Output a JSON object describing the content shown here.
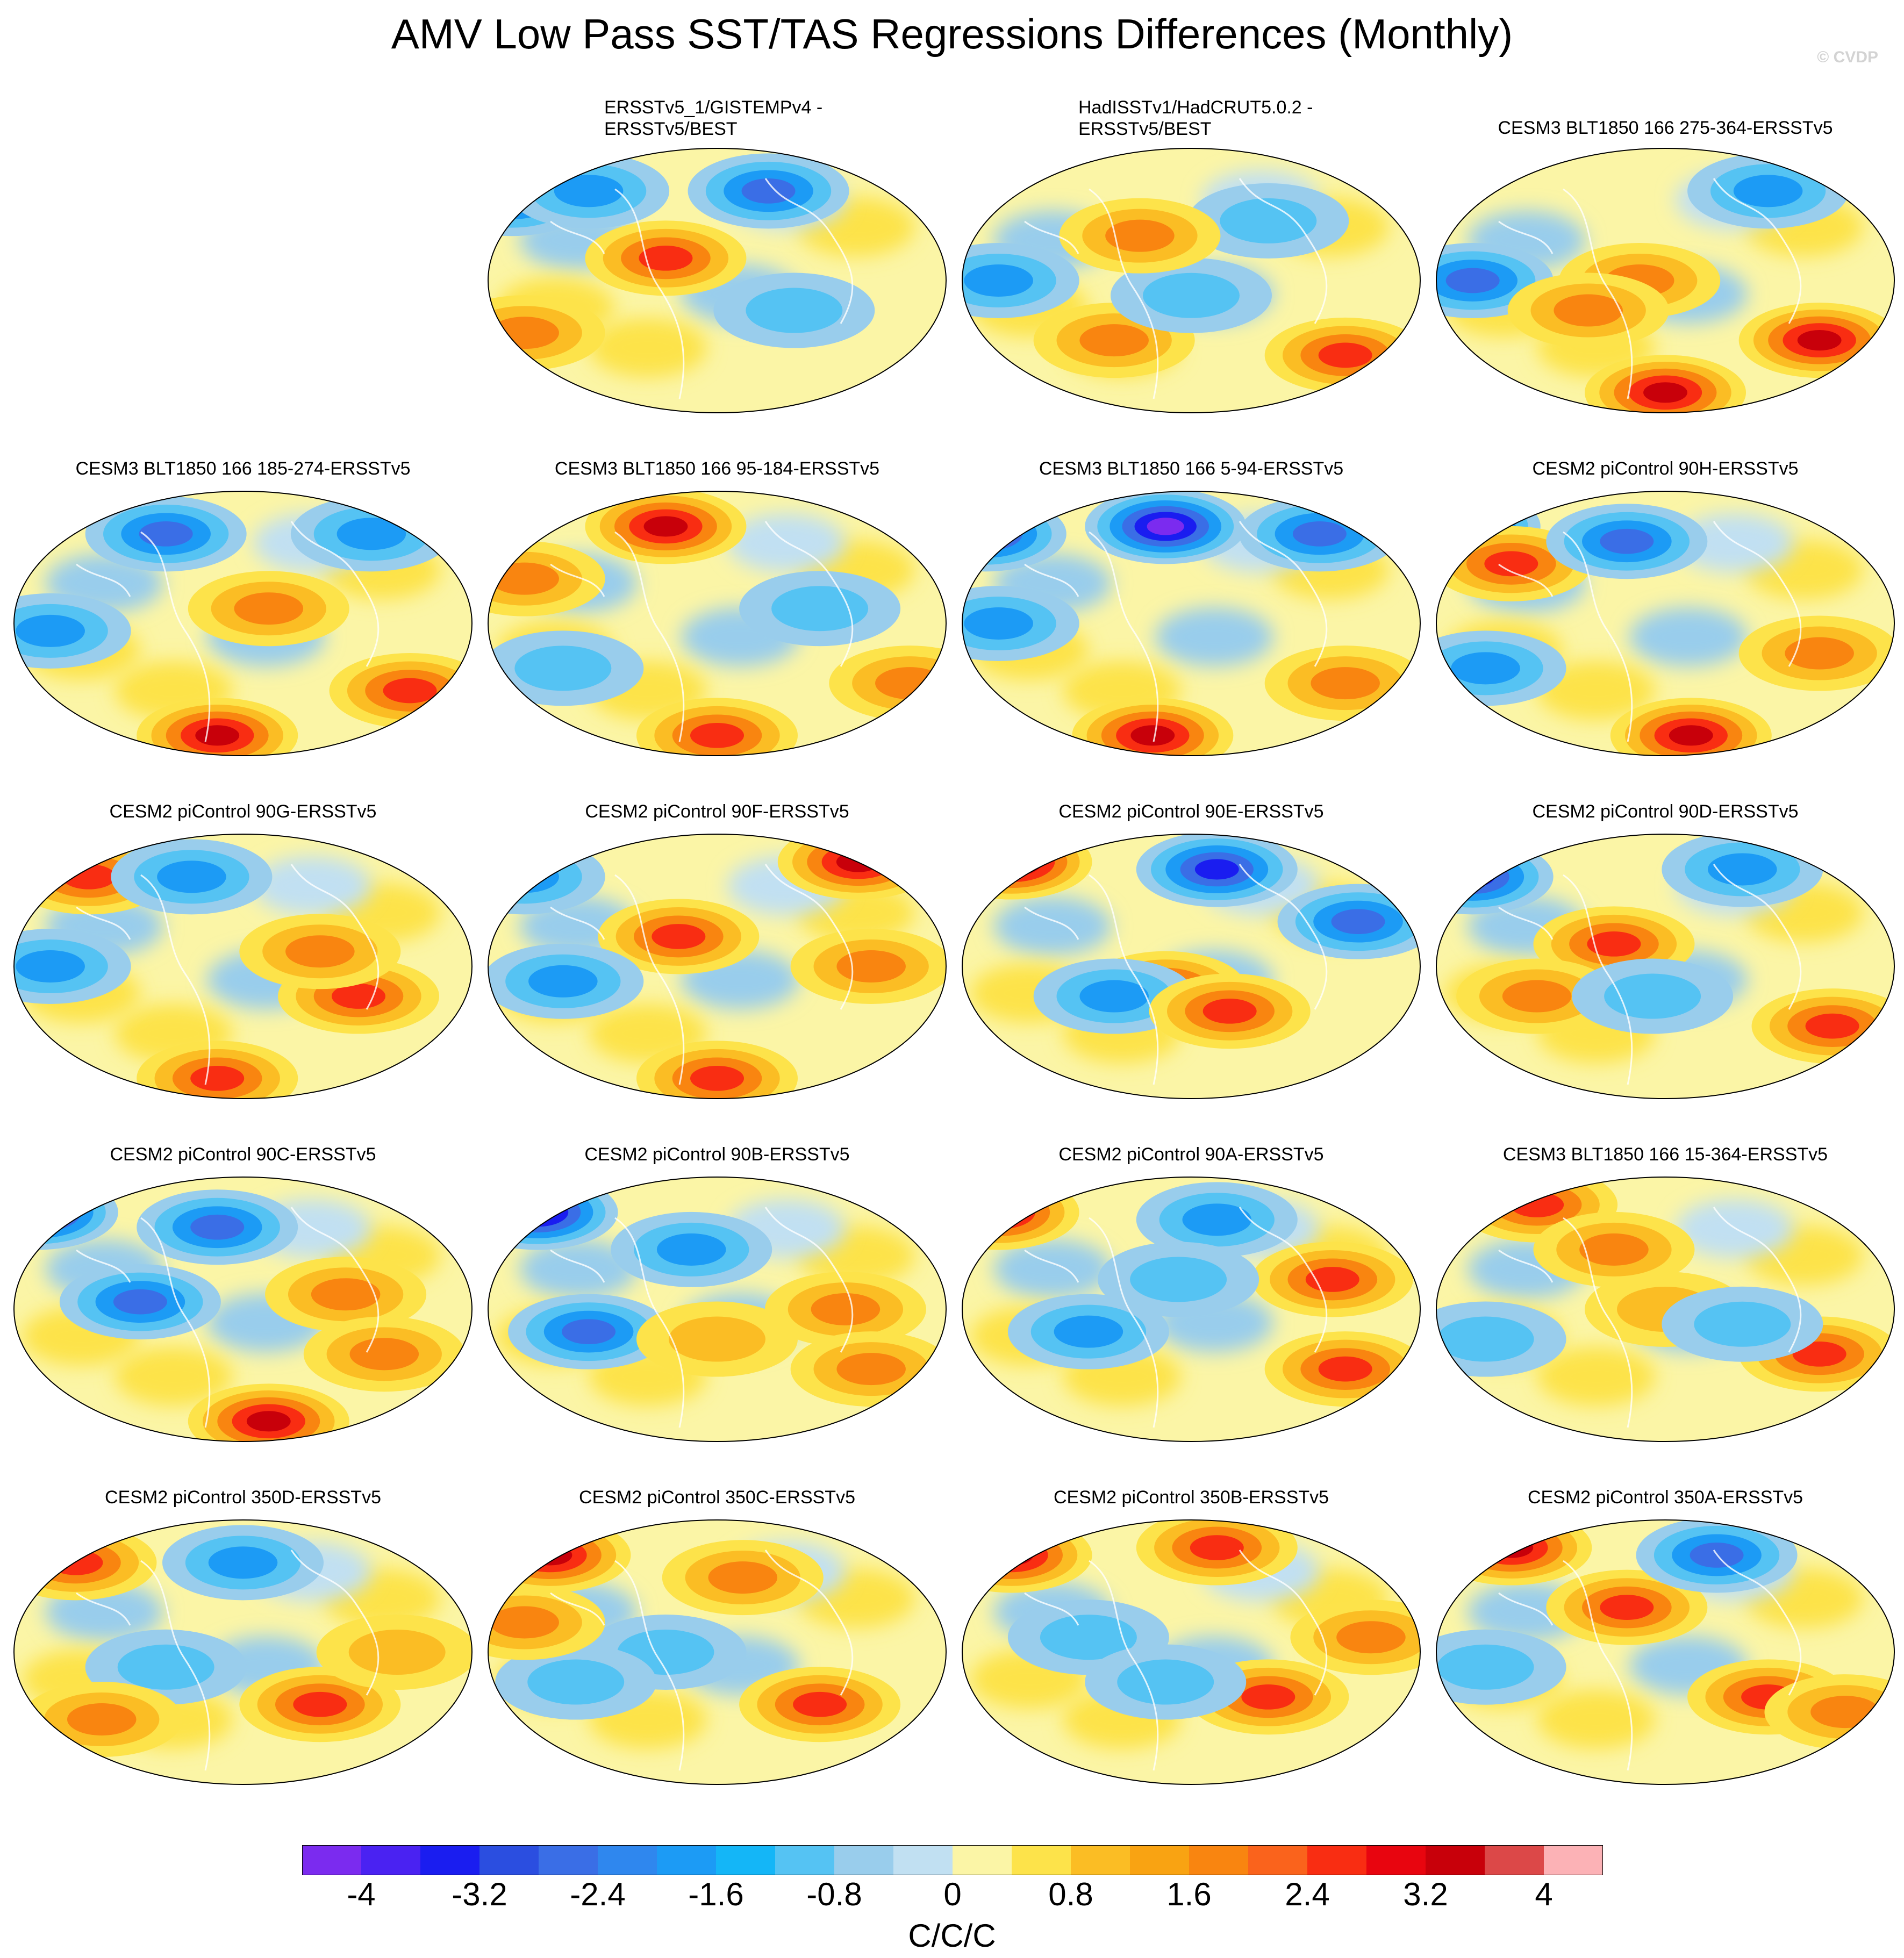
{
  "title": "AMV Low Pass SST/TAS Regressions Differences (Monthly)",
  "copyright": "© CVDP",
  "panels": [
    {
      "line1": "ERSSTv5_1/GISTEMPv4 -",
      "line2": "ERSSTv5/BEST",
      "anomalies": [
        {
          "lon": -160,
          "lat": 55,
          "v": -2.5
        },
        {
          "lon": -40,
          "lat": 15,
          "v": 2.5
        },
        {
          "lon": -150,
          "lat": -35,
          "v": 2.0
        },
        {
          "lon": 40,
          "lat": 60,
          "v": -3.0
        },
        {
          "lon": 60,
          "lat": -20,
          "v": -1.2
        },
        {
          "lon": -100,
          "lat": 60,
          "v": -2.0
        }
      ]
    },
    {
      "line1": "HadISSTv1/HadCRUT5.0.2 -",
      "line2": "ERSSTv5/BEST",
      "anomalies": [
        {
          "lon": -150,
          "lat": 0,
          "v": -1.6
        },
        {
          "lon": 120,
          "lat": -50,
          "v": 3.0
        },
        {
          "lon": -60,
          "lat": -40,
          "v": 2.0
        },
        {
          "lon": 60,
          "lat": 40,
          "v": -1.2
        },
        {
          "lon": 0,
          "lat": -10,
          "v": -1.0
        },
        {
          "lon": -40,
          "lat": 30,
          "v": 1.6
        }
      ]
    },
    {
      "line1": "CESM3 BLT1850 166 275-364-ERSSTv5",
      "line2": "",
      "anomalies": [
        {
          "lon": -150,
          "lat": 0,
          "v": -2.6
        },
        {
          "lon": 120,
          "lat": -40,
          "v": 3.2
        },
        {
          "lon": -20,
          "lat": 0,
          "v": 2.0
        },
        {
          "lon": 0,
          "lat": -75,
          "v": 3.2
        },
        {
          "lon": 80,
          "lat": 60,
          "v": -2.2
        },
        {
          "lon": -60,
          "lat": -20,
          "v": 1.8
        }
      ]
    },
    {
      "line1": "CESM3 BLT1850 166 185-274-ERSSTv5",
      "line2": "",
      "anomalies": [
        {
          "lon": -150,
          "lat": -5,
          "v": -2.0
        },
        {
          "lon": -20,
          "lat": -75,
          "v": 3.6
        },
        {
          "lon": 130,
          "lat": -45,
          "v": 3.0
        },
        {
          "lon": -60,
          "lat": 60,
          "v": -2.4
        },
        {
          "lon": 100,
          "lat": 60,
          "v": -2.2
        },
        {
          "lon": 20,
          "lat": 10,
          "v": 2.0
        }
      ]
    },
    {
      "line1": "CESM3 BLT1850 166 95-184-ERSSTv5",
      "line2": "",
      "anomalies": [
        {
          "lon": -40,
          "lat": 65,
          "v": 3.2
        },
        {
          "lon": -150,
          "lat": 30,
          "v": 1.8
        },
        {
          "lon": 0,
          "lat": -75,
          "v": 2.6
        },
        {
          "lon": 150,
          "lat": -40,
          "v": 1.8
        },
        {
          "lon": 80,
          "lat": 10,
          "v": -1.2
        },
        {
          "lon": -120,
          "lat": -30,
          "v": -1.0
        }
      ]
    },
    {
      "line1": "CESM3 BLT1850 166 5-94-ERSSTv5",
      "line2": "",
      "anomalies": [
        {
          "lon": -160,
          "lat": 60,
          "v": -3.8
        },
        {
          "lon": -20,
          "lat": 65,
          "v": -4.0
        },
        {
          "lon": -30,
          "lat": -75,
          "v": 3.8
        },
        {
          "lon": -150,
          "lat": 0,
          "v": -1.8
        },
        {
          "lon": 100,
          "lat": 60,
          "v": -3.0
        },
        {
          "lon": 120,
          "lat": -40,
          "v": 2.2
        }
      ]
    },
    {
      "line1": "CESM2 piControl 90H-ERSSTv5",
      "line2": "",
      "anomalies": [
        {
          "lon": -160,
          "lat": 65,
          "v": -4.2
        },
        {
          "lon": -120,
          "lat": 40,
          "v": 2.4
        },
        {
          "lon": -30,
          "lat": 55,
          "v": -3.0
        },
        {
          "lon": 20,
          "lat": -75,
          "v": 3.4
        },
        {
          "lon": -140,
          "lat": -30,
          "v": -2.0
        },
        {
          "lon": 120,
          "lat": -20,
          "v": 1.8
        }
      ]
    },
    {
      "line1": "CESM2 piControl 90G-ERSSTv5",
      "line2": "",
      "anomalies": [
        {
          "lon": -120,
          "lat": 60,
          "v": 3.0
        },
        {
          "lon": -150,
          "lat": 0,
          "v": -1.6
        },
        {
          "lon": 90,
          "lat": -20,
          "v": 2.6
        },
        {
          "lon": -40,
          "lat": 60,
          "v": -2.2
        },
        {
          "lon": -20,
          "lat": -75,
          "v": 2.4
        },
        {
          "lon": 60,
          "lat": 10,
          "v": 2.0
        }
      ]
    },
    {
      "line1": "CESM2 piControl 90F-ERSSTv5",
      "line2": "",
      "anomalies": [
        {
          "lon": -30,
          "lat": 20,
          "v": 2.8
        },
        {
          "lon": -120,
          "lat": -10,
          "v": -1.6
        },
        {
          "lon": 0,
          "lat": -75,
          "v": 3.0
        },
        {
          "lon": 110,
          "lat": 70,
          "v": 3.4
        },
        {
          "lon": 120,
          "lat": 0,
          "v": 1.8
        },
        {
          "lon": -150,
          "lat": 60,
          "v": -1.6
        }
      ]
    },
    {
      "line1": "CESM2 piControl 90E-ERSSTv5",
      "line2": "",
      "anomalies": [
        {
          "lon": -140,
          "lat": 70,
          "v": 4.2
        },
        {
          "lon": 20,
          "lat": 65,
          "v": -3.8
        },
        {
          "lon": 130,
          "lat": 30,
          "v": -3.0
        },
        {
          "lon": -20,
          "lat": -15,
          "v": 2.6
        },
        {
          "lon": -60,
          "lat": -20,
          "v": -2.2
        },
        {
          "lon": 30,
          "lat": -30,
          "v": 2.4
        }
      ]
    },
    {
      "line1": "CESM2 piControl 90D-ERSSTv5",
      "line2": "",
      "anomalies": [
        {
          "lon": -150,
          "lat": 60,
          "v": -3.2
        },
        {
          "lon": -40,
          "lat": 15,
          "v": 2.6
        },
        {
          "lon": 130,
          "lat": -40,
          "v": 3.0
        },
        {
          "lon": 60,
          "lat": 65,
          "v": -2.0
        },
        {
          "lon": -100,
          "lat": -20,
          "v": 1.8
        },
        {
          "lon": -10,
          "lat": -20,
          "v": -1.4
        }
      ]
    },
    {
      "line1": "CESM2 piControl 90C-ERSSTv5",
      "line2": "",
      "anomalies": [
        {
          "lon": -160,
          "lat": 65,
          "v": -4.2
        },
        {
          "lon": -80,
          "lat": 5,
          "v": -2.4
        },
        {
          "lon": 20,
          "lat": -75,
          "v": 3.8
        },
        {
          "lon": 80,
          "lat": 10,
          "v": 2.0
        },
        {
          "lon": -20,
          "lat": 55,
          "v": -2.6
        },
        {
          "lon": 110,
          "lat": -30,
          "v": 1.6
        }
      ]
    },
    {
      "line1": "CESM2 piControl 90B-ERSSTv5",
      "line2": "",
      "anomalies": [
        {
          "lon": -140,
          "lat": 65,
          "v": -4.0
        },
        {
          "lon": -100,
          "lat": -15,
          "v": -2.6
        },
        {
          "lon": 100,
          "lat": 0,
          "v": 1.8
        },
        {
          "lon": 120,
          "lat": -40,
          "v": 2.2
        },
        {
          "lon": -20,
          "lat": 40,
          "v": -1.6
        },
        {
          "lon": 0,
          "lat": -20,
          "v": 1.2
        }
      ]
    },
    {
      "line1": "CESM2 piControl 90A-ERSSTv5",
      "line2": "",
      "anomalies": [
        {
          "lon": -150,
          "lat": 65,
          "v": 3.6
        },
        {
          "lon": -80,
          "lat": -15,
          "v": -1.8
        },
        {
          "lon": 20,
          "lat": 60,
          "v": -2.2
        },
        {
          "lon": 110,
          "lat": 20,
          "v": 2.6
        },
        {
          "lon": 120,
          "lat": -40,
          "v": 2.4
        },
        {
          "lon": -10,
          "lat": 20,
          "v": -1.4
        }
      ]
    },
    {
      "line1": "CESM3 BLT1850 166 15-364-ERSSTv5",
      "line2": "",
      "anomalies": [
        {
          "lon": -100,
          "lat": 70,
          "v": 3.0
        },
        {
          "lon": 0,
          "lat": 0,
          "v": 1.4
        },
        {
          "lon": 120,
          "lat": -30,
          "v": 2.4
        },
        {
          "lon": -140,
          "lat": -20,
          "v": -1.2
        },
        {
          "lon": 60,
          "lat": -10,
          "v": -1.4
        },
        {
          "lon": -40,
          "lat": 40,
          "v": 1.8
        }
      ]
    },
    {
      "line1": "CESM2 piControl 350D-ERSSTv5",
      "line2": "",
      "anomalies": [
        {
          "lon": -130,
          "lat": 60,
          "v": 2.8
        },
        {
          "lon": 60,
          "lat": -35,
          "v": 2.6
        },
        {
          "lon": -60,
          "lat": -10,
          "v": -1.4
        },
        {
          "lon": 0,
          "lat": 60,
          "v": -1.6
        },
        {
          "lon": -110,
          "lat": -45,
          "v": 2.0
        },
        {
          "lon": 120,
          "lat": 0,
          "v": 1.2
        }
      ]
    },
    {
      "line1": "CESM2 piControl 350C-ERSSTv5",
      "line2": "",
      "anomalies": [
        {
          "lon": -130,
          "lat": 65,
          "v": 3.2
        },
        {
          "lon": 80,
          "lat": -35,
          "v": 2.8
        },
        {
          "lon": -40,
          "lat": 0,
          "v": -1.4
        },
        {
          "lon": 20,
          "lat": 50,
          "v": 1.8
        },
        {
          "lon": -110,
          "lat": -20,
          "v": -1.0
        },
        {
          "lon": -150,
          "lat": 20,
          "v": 1.6
        }
      ]
    },
    {
      "line1": "CESM2 piControl 350B-ERSSTv5",
      "line2": "",
      "anomalies": [
        {
          "lon": -140,
          "lat": 65,
          "v": 3.6
        },
        {
          "lon": 60,
          "lat": -30,
          "v": 2.8
        },
        {
          "lon": -80,
          "lat": 10,
          "v": -1.4
        },
        {
          "lon": 20,
          "lat": 70,
          "v": 3.0
        },
        {
          "lon": -20,
          "lat": -20,
          "v": -1.2
        },
        {
          "lon": 140,
          "lat": 10,
          "v": 1.6
        }
      ]
    },
    {
      "line1": "CESM2 piControl 350A-ERSSTv5",
      "line2": "",
      "anomalies": [
        {
          "lon": -120,
          "lat": 70,
          "v": 3.8
        },
        {
          "lon": -30,
          "lat": 30,
          "v": 2.8
        },
        {
          "lon": 80,
          "lat": -30,
          "v": 3.0
        },
        {
          "lon": 40,
          "lat": 65,
          "v": -3.0
        },
        {
          "lon": -140,
          "lat": -10,
          "v": -1.2
        },
        {
          "lon": 140,
          "lat": -40,
          "v": 2.2
        }
      ]
    }
  ],
  "chart_data": {
    "type": "heatmap",
    "title": "AMV Low Pass SST/TAS Regressions Differences (Monthly)",
    "projection": "global map",
    "units": "C/C/C",
    "colorbar": {
      "levels": [
        -4.4,
        -4.0,
        -3.6,
        -3.2,
        -2.8,
        -2.4,
        -2.0,
        -1.6,
        -1.2,
        -0.8,
        -0.4,
        0,
        0.4,
        0.8,
        1.2,
        1.6,
        2.0,
        2.4,
        2.8,
        3.2,
        3.6,
        4.0,
        4.4
      ],
      "tick_values": [
        -4,
        -3.2,
        -2.4,
        -1.6,
        -0.8,
        0,
        0.8,
        1.6,
        2.4,
        3.2,
        4
      ],
      "tick_labels": [
        "-4",
        "-3.2",
        "-2.4",
        "-1.6",
        "-0.8",
        "0",
        "0.8",
        "1.6",
        "2.4",
        "3.2",
        "4"
      ],
      "colors": [
        "#7b2bef",
        "#4a22f2",
        "#1a1df0",
        "#2b4ee0",
        "#3a6ee6",
        "#2f87ee",
        "#1c9bf5",
        "#14b6f7",
        "#55c3f3",
        "#99cdec",
        "#c1e0f2",
        "#fbf5a6",
        "#fde34a",
        "#fbbd24",
        "#f9a312",
        "#f98510",
        "#fa631c",
        "#f92d12",
        "#e8050f",
        "#c8000a",
        "#dc4848",
        "#fcb2b6"
      ]
    }
  }
}
